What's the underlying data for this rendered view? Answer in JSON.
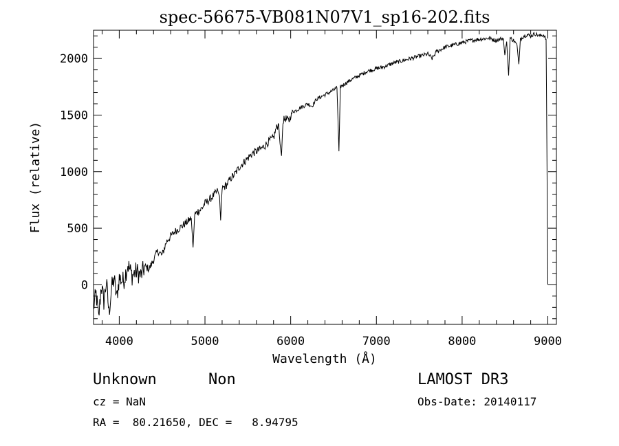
{
  "chart_data": {
    "type": "line",
    "title": "spec-56675-VB081N07V1_sp16-202.fits",
    "xlabel": "Wavelength (Å)",
    "ylabel": "Flux (relative)",
    "xlim": [
      3700,
      9100
    ],
    "ylim": [
      -350,
      2250
    ],
    "x_ticks": [
      4000,
      5000,
      6000,
      7000,
      8000,
      9000
    ],
    "y_ticks": [
      0,
      500,
      1000,
      1500,
      2000
    ],
    "grid": false,
    "line_color": "#000000",
    "series": [
      {
        "x": [
          3700,
          3730,
          3760,
          3790,
          3820,
          3850,
          3880,
          3910,
          3940,
          3970,
          4000,
          4050,
          4100,
          4150,
          4200,
          4250,
          4300,
          4350,
          4400,
          4450,
          4500,
          4550,
          4600,
          4650,
          4700,
          4750,
          4800,
          4840,
          4861,
          4880,
          4920,
          4960,
          5000,
          5050,
          5100,
          5150,
          5170,
          5183,
          5200,
          5250,
          5300,
          5350,
          5400,
          5450,
          5500,
          5550,
          5600,
          5650,
          5700,
          5750,
          5800,
          5830,
          5860,
          5875,
          5893,
          5910,
          5940,
          5980,
          6020,
          6060,
          6100,
          6150,
          6200,
          6250,
          6300,
          6350,
          6400,
          6450,
          6500,
          6540,
          6563,
          6580,
          6620,
          6660,
          6700,
          6750,
          6800,
          6850,
          6900,
          6950,
          7000,
          7100,
          7200,
          7300,
          7400,
          7500,
          7600,
          7650,
          7700,
          7800,
          7900,
          8000,
          8100,
          8200,
          8300,
          8400,
          8480,
          8498,
          8520,
          8542,
          8560,
          8600,
          8640,
          8662,
          8680,
          8720,
          8760,
          8800,
          8850,
          8900,
          8950,
          8980,
          9000
        ],
        "y": [
          -200,
          -80,
          -300,
          0,
          -150,
          30,
          -250,
          -30,
          50,
          -120,
          60,
          30,
          180,
          80,
          120,
          80,
          160,
          140,
          220,
          300,
          260,
          380,
          430,
          470,
          500,
          530,
          560,
          590,
          330,
          620,
          650,
          670,
          720,
          750,
          790,
          830,
          780,
          570,
          850,
          880,
          940,
          980,
          1040,
          1080,
          1120,
          1160,
          1180,
          1200,
          1230,
          1270,
          1300,
          1380,
          1420,
          1250,
          1140,
          1450,
          1470,
          1450,
          1530,
          1540,
          1560,
          1580,
          1600,
          1580,
          1640,
          1660,
          1680,
          1700,
          1720,
          1740,
          1180,
          1750,
          1770,
          1790,
          1810,
          1830,
          1850,
          1870,
          1890,
          1900,
          1910,
          1930,
          1960,
          1980,
          2000,
          2020,
          2040,
          2000,
          2060,
          2100,
          2120,
          2140,
          2160,
          2170,
          2180,
          2160,
          2180,
          2030,
          2150,
          1850,
          2180,
          2160,
          2120,
          1950,
          2170,
          2200,
          2210,
          2200,
          2220,
          2200,
          2210,
          2170,
          0
        ]
      }
    ]
  },
  "annotations": {
    "object_class": "Unknown",
    "object_subclass": "Non",
    "survey": "LAMOST DR3",
    "redshift_line": "cz = NaN",
    "obs_date_line": "Obs-Date: 20140117",
    "coords_line": "RA =  80.21650, DEC =   8.94795"
  }
}
